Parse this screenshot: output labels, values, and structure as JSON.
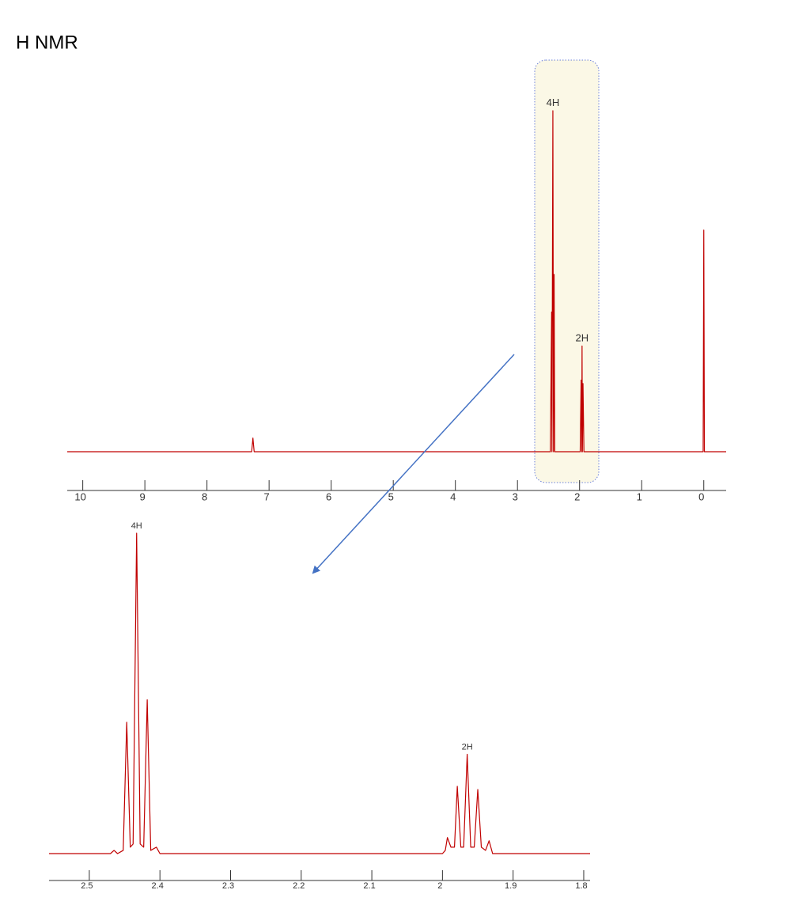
{
  "title": "H NMR",
  "chart_data": [
    {
      "type": "line",
      "x": [
        10.25,
        7.28,
        7.26,
        7.24,
        2.47,
        2.45,
        2.445,
        2.43,
        2.42,
        2.41,
        2.4,
        1.99,
        1.975,
        1.965,
        1.96,
        1.955,
        1.945,
        1.93,
        0.01,
        0,
        -0.01,
        -0.36
      ],
      "values": [
        0,
        0,
        4,
        0,
        0,
        41,
        0,
        100,
        0,
        52,
        0,
        0,
        21,
        0,
        31,
        0,
        20,
        0,
        0,
        65,
        0,
        0
      ],
      "color": "#c00000",
      "xlim": [
        10.25,
        -0.36
      ],
      "ylim": [
        0,
        100
      ],
      "xticks": [
        10,
        9,
        8,
        7,
        6,
        5,
        4,
        3,
        2,
        1,
        0
      ],
      "annotations": [
        {
          "text": "4H",
          "x": 2.43,
          "y": 100
        },
        {
          "text": "2H",
          "x": 1.96,
          "y": 31
        }
      ]
    },
    {
      "type": "line",
      "x": [
        2.557,
        2.47,
        2.465,
        2.46,
        2.452,
        2.447,
        2.442,
        2.438,
        2.433,
        2.428,
        2.423,
        2.418,
        2.413,
        2.405,
        2.4,
        2.0,
        1.996,
        1.993,
        1.988,
        1.983,
        1.979,
        1.974,
        1.97,
        1.965,
        1.96,
        1.955,
        1.95,
        1.945,
        1.939,
        1.934,
        1.929,
        1.791
      ],
      "values": [
        0,
        0,
        1,
        0,
        1,
        41,
        2,
        3,
        100,
        3,
        2,
        48,
        1,
        2,
        0,
        0,
        1,
        5,
        2,
        2,
        21,
        2,
        2,
        31,
        2,
        2,
        20,
        2,
        1,
        4,
        0,
        0
      ],
      "color": "#c00000",
      "xlim": [
        2.557,
        1.791
      ],
      "ylim": [
        0,
        100
      ],
      "xticks": [
        2.5,
        2.4,
        2.3,
        2.2,
        2.1,
        2,
        1.9,
        1.8
      ],
      "annotations": [
        {
          "text": "4H",
          "x": 2.433,
          "y": 100
        },
        {
          "text": "2H",
          "x": 1.965,
          "y": 31
        }
      ]
    }
  ]
}
